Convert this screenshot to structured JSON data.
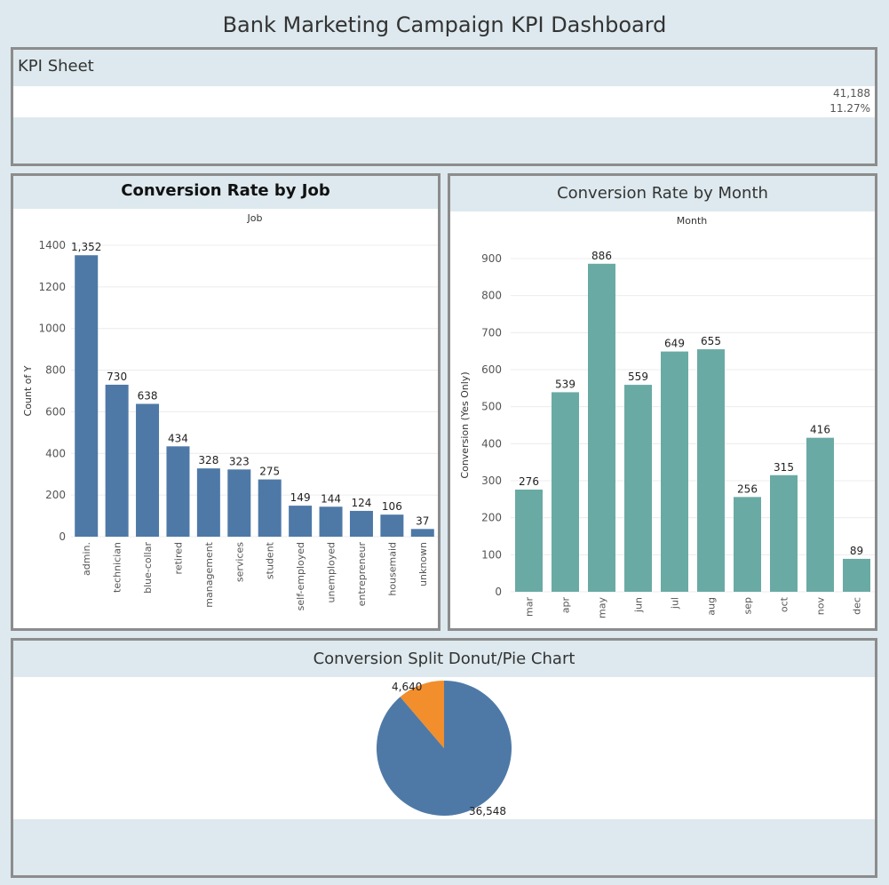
{
  "dashboard": {
    "title": "Bank Marketing Campaign KPI Dashboard"
  },
  "kpi": {
    "title": "KPI Sheet",
    "total": "41,188",
    "rate": "11.27%"
  },
  "chart_data": [
    {
      "type": "bar",
      "title": "Conversion Rate by Job",
      "header": "Job",
      "ylabel": "Count of Y",
      "ylim": [
        0,
        1400
      ],
      "yticks": [
        0,
        200,
        400,
        600,
        800,
        1000,
        1200,
        1400
      ],
      "categories": [
        "admin.",
        "technician",
        "blue-collar",
        "retired",
        "management",
        "services",
        "student",
        "self-employed",
        "unemployed",
        "entrepreneur",
        "housemaid",
        "unknown"
      ],
      "values": [
        1352,
        730,
        638,
        434,
        328,
        323,
        275,
        149,
        144,
        124,
        106,
        37
      ],
      "labels": [
        "1,352",
        "730",
        "638",
        "434",
        "328",
        "323",
        "275",
        "149",
        "144",
        "124",
        "106",
        "37"
      ],
      "color": "#4e79a7"
    },
    {
      "type": "bar",
      "title": "Conversion Rate by Month",
      "header": "Month",
      "ylabel": "Conversion (Yes Only)",
      "ylim": [
        0,
        900
      ],
      "yticks": [
        0,
        100,
        200,
        300,
        400,
        500,
        600,
        700,
        800,
        900
      ],
      "categories": [
        "mar",
        "apr",
        "may",
        "jun",
        "jul",
        "aug",
        "sep",
        "oct",
        "nov",
        "dec"
      ],
      "values": [
        276,
        539,
        886,
        559,
        649,
        655,
        256,
        315,
        416,
        89
      ],
      "labels": [
        "276",
        "539",
        "886",
        "559",
        "649",
        "655",
        "256",
        "315",
        "416",
        "89"
      ],
      "color": "#6aaaa4"
    },
    {
      "type": "pie",
      "title": "Conversion Split Donut/Pie Chart",
      "values": [
        36548,
        4640
      ],
      "labels": [
        "36,548",
        "4,640"
      ],
      "colors": [
        "#4e79a7",
        "#f28e2b"
      ]
    }
  ]
}
